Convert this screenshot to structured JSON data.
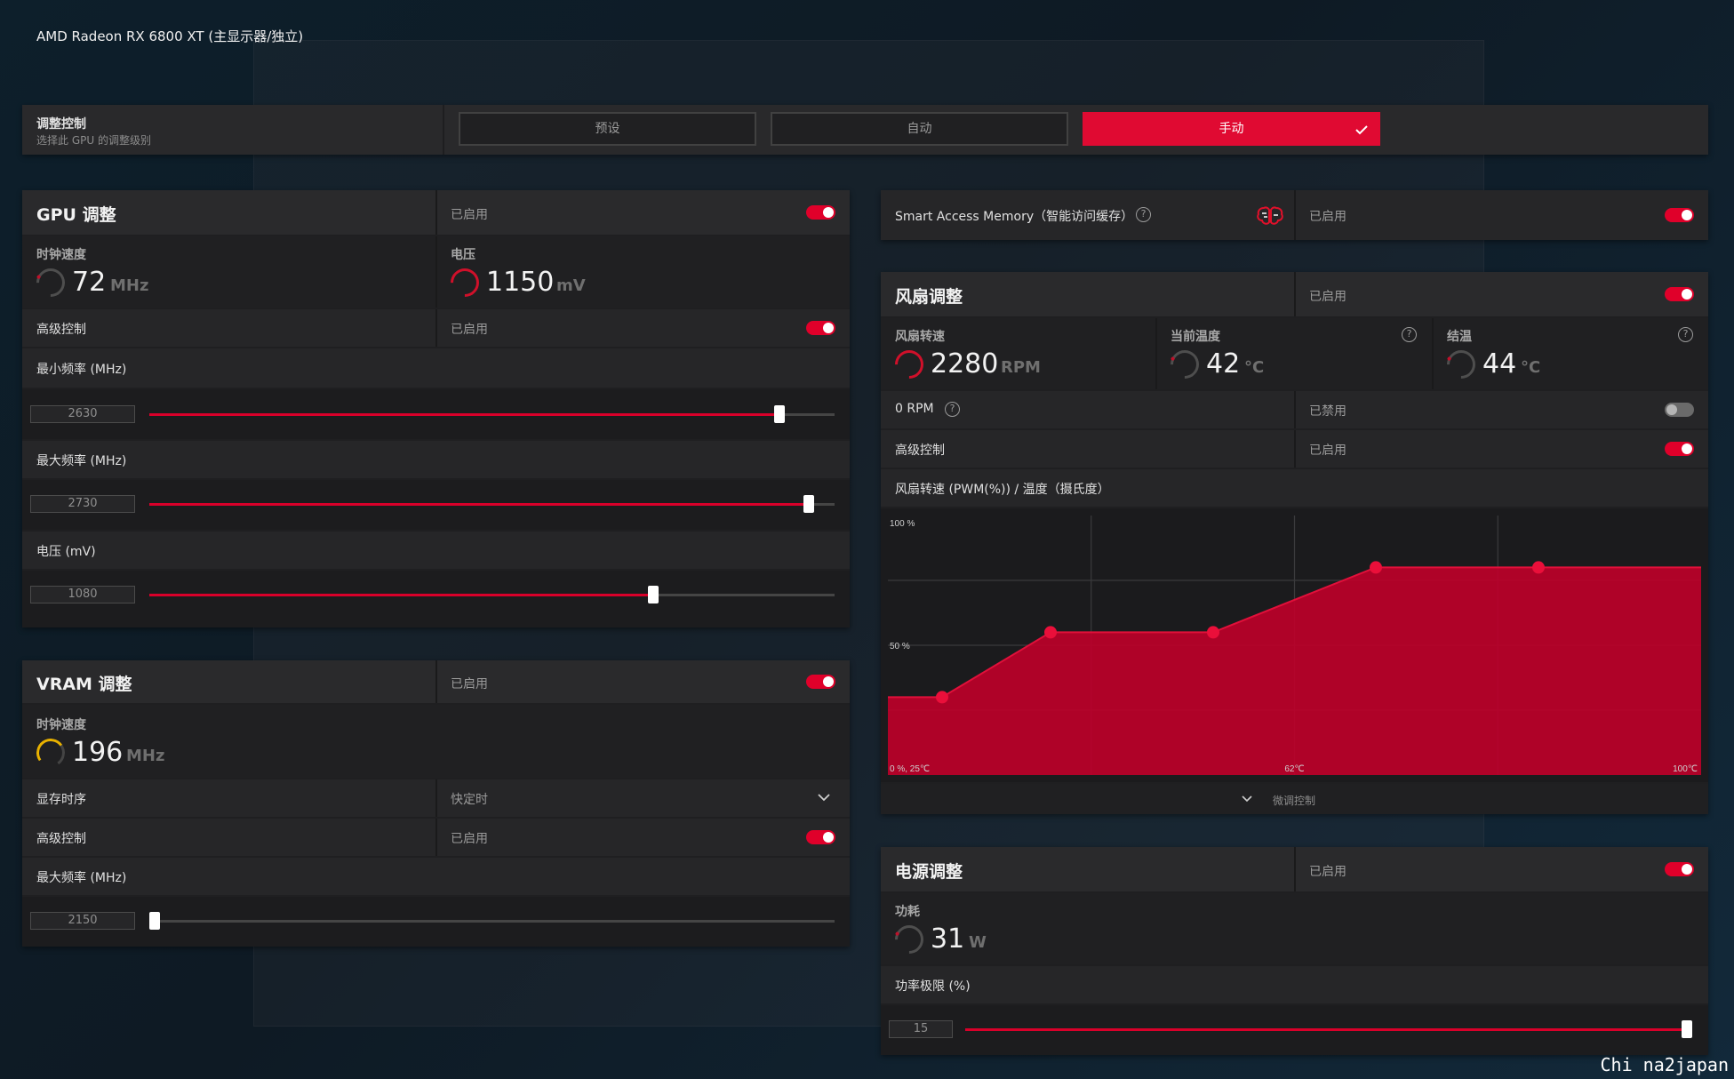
{
  "window": {
    "title": "AMD Radeon RX 6800 XT (主显示器/独立)"
  },
  "tuning_control": {
    "title": "调整控制",
    "subtitle": "选择此 GPU 的调整级别",
    "options": [
      "预设",
      "自动",
      "手动"
    ],
    "selected": "手动"
  },
  "gpu": {
    "title": "GPU 调整",
    "status": "已启用",
    "clock": {
      "label": "时钟速度",
      "value": "72",
      "unit": "MHz"
    },
    "voltage": {
      "label": "电压",
      "value": "1150",
      "unit": "mV"
    },
    "advanced": {
      "label": "高级控制",
      "status": "已启用"
    },
    "min_freq": {
      "label": "最小频率 (MHz)",
      "value": "2630",
      "fraction": 0.92
    },
    "max_freq": {
      "label": "最大频率 (MHz)",
      "value": "2730",
      "fraction": 0.963
    },
    "voltage_mv": {
      "label": "电压 (mV)",
      "value": "1080",
      "fraction": 0.735
    }
  },
  "vram": {
    "title": "VRAM 调整",
    "status": "已启用",
    "clock": {
      "label": "时钟速度",
      "value": "196",
      "unit": "MHz"
    },
    "timing": {
      "label": "显存时序",
      "value": "快定时"
    },
    "advanced": {
      "label": "高级控制",
      "status": "已启用"
    },
    "max_freq": {
      "label": "最大频率 (MHz)",
      "value": "2150",
      "fraction": 0.008
    }
  },
  "sam": {
    "label": "Smart Access Memory（智能访问缓存）",
    "status": "已启用",
    "icon": "brain-icon"
  },
  "fan": {
    "title": "风扇调整",
    "status": "已启用",
    "speed": {
      "label": "风扇转速",
      "value": "2280",
      "unit": "RPM"
    },
    "temp": {
      "label": "当前温度",
      "value": "42",
      "unit": "°C"
    },
    "junction": {
      "label": "结温",
      "value": "44",
      "unit": "°C"
    },
    "zero_rpm": {
      "label": "0 RPM",
      "status": "已禁用"
    },
    "advanced": {
      "label": "高级控制",
      "status": "已启用"
    },
    "curve_title": "风扇转速 (PWM(%)) / 温度（摄氏度）",
    "fine_tune": "微调控制"
  },
  "chart_data": {
    "type": "area",
    "title": "风扇转速 (PWM(%)) / 温度（摄氏度）",
    "x_labels": [
      "0 %, 25℃",
      "62℃",
      "100℃"
    ],
    "y_labels": [
      "100 %",
      "50 %"
    ],
    "xlim": [
      25,
      100
    ],
    "ylim": [
      0,
      100
    ],
    "grid": true,
    "points": [
      {
        "x": 30,
        "y": 30
      },
      {
        "x": 40,
        "y": 55
      },
      {
        "x": 55,
        "y": 55
      },
      {
        "x": 70,
        "y": 80
      },
      {
        "x": 85,
        "y": 80
      }
    ],
    "color": "#c0002a"
  },
  "power": {
    "title": "电源调整",
    "status": "已启用",
    "consumption": {
      "label": "功耗",
      "value": "31",
      "unit": "W"
    },
    "limit": {
      "label": "功率极限 (%)",
      "value": "15",
      "fraction": 1.0
    }
  },
  "watermark": "Chi na2japan"
}
